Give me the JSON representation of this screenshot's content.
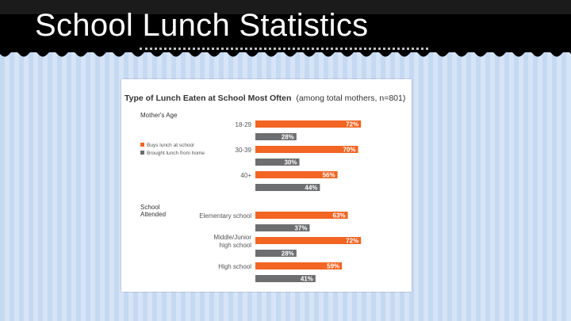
{
  "slide": {
    "title": "School Lunch Statistics"
  },
  "chart_data": {
    "type": "bar",
    "orientation": "horizontal",
    "title": "Type of Lunch Eaten at School Most Often",
    "subtitle": "(among total mothers, n=801)",
    "legend": {
      "placement": "left",
      "entries": [
        "Buys lunch at school",
        "Brought lunch from home"
      ]
    },
    "colors": [
      "#f26522",
      "#6d6e70"
    ],
    "xlim": [
      0,
      100
    ],
    "unit": "%",
    "groups": [
      {
        "label": "Mother's Age",
        "categories": [
          "18-29",
          "30-39",
          "40+"
        ],
        "series": [
          {
            "name": "Buys lunch at school",
            "values": [
              72,
              70,
              56
            ]
          },
          {
            "name": "Brought lunch from home",
            "values": [
              28,
              30,
              44
            ]
          }
        ]
      },
      {
        "label": "School Attended",
        "categories": [
          "Elementary school",
          "Middle/Junior high school",
          "High school"
        ],
        "series": [
          {
            "name": "Buys lunch at school",
            "values": [
              63,
              72,
              59
            ]
          },
          {
            "name": "Brought lunch from home",
            "values": [
              37,
              28,
              41
            ]
          }
        ]
      }
    ]
  }
}
